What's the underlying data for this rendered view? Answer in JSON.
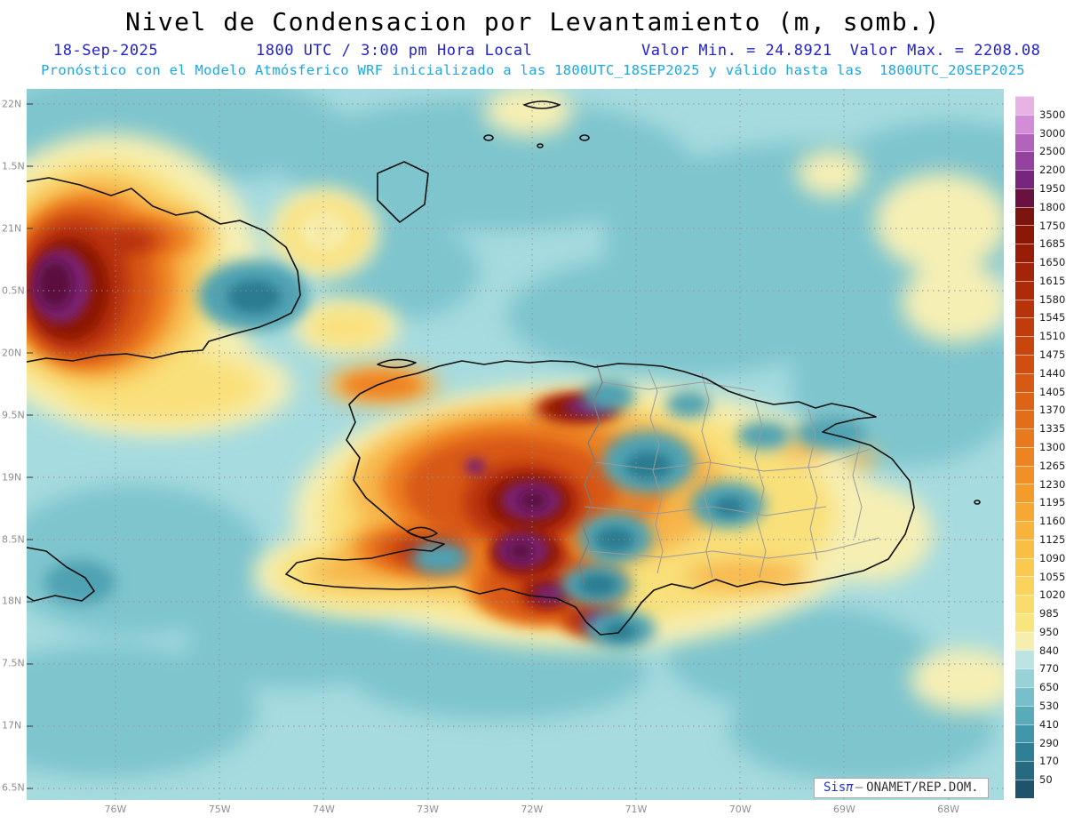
{
  "title": "Nivel de Condensacion por Levantamiento (m, somb.)",
  "header": {
    "date": "18-Sep-2025",
    "time": "1800 UTC / 3:00 pm Hora Local",
    "min_label": "Valor Min. = 24.8921",
    "max_label": "Valor Max. = 2208.08",
    "model_line": "Pronóstico con el Modelo Atmósferico WRF inicializado a las 1800UTC_18SEP2025 y válido hasta las  1800UTC_20SEP2025"
  },
  "map": {
    "lat_labels": [
      "22N",
      "1.5N",
      "21N",
      "0.5N",
      "20N",
      "9.5N",
      "19N",
      "8.5N",
      "18N",
      "7.5N",
      "17N",
      "6.5N"
    ],
    "lon_labels": [
      "76W",
      "75W",
      "74W",
      "73W",
      "72W",
      "71W",
      "70W",
      "69W",
      "68W"
    ]
  },
  "colorbar": {
    "ticks": [
      "3500",
      "3000",
      "2500",
      "2200",
      "1950",
      "1800",
      "1750",
      "1685",
      "1650",
      "1615",
      "1580",
      "1545",
      "1510",
      "1475",
      "1440",
      "1405",
      "1370",
      "1335",
      "1300",
      "1265",
      "1230",
      "1195",
      "1160",
      "1125",
      "1090",
      "1055",
      "1020",
      "985",
      "950",
      "840",
      "770",
      "650",
      "530",
      "410",
      "290",
      "170",
      "50"
    ],
    "colors": [
      "#e7b3e4",
      "#d28cd8",
      "#b463bd",
      "#95419f",
      "#76267c",
      "#691242",
      "#7c1510",
      "#8b1706",
      "#981d07",
      "#a32408",
      "#ad2b09",
      "#b7330a",
      "#c03c0c",
      "#c8450e",
      "#d04f10",
      "#d75913",
      "#dd6316",
      "#e36e19",
      "#e8791d",
      "#ec8421",
      "#f09026",
      "#f39c2c",
      "#f5a833",
      "#f7b33b",
      "#f9bf45",
      "#fac950",
      "#fad35d",
      "#f9dc6b",
      "#f8e57d",
      "#f6eeae",
      "#bde4e2",
      "#97d2d8",
      "#77bfca",
      "#59abba",
      "#4296a9",
      "#2f8096",
      "#256a81",
      "#1e546b"
    ]
  },
  "credit": {
    "brand": "Sis",
    "symbol": "π",
    "separator": "—",
    "org": "ONAMET/REP.DOM."
  },
  "palette": {
    "sea_background": "#a6dbdf",
    "header_blue": "#2222cc",
    "header_cyan": "#1ba8e0",
    "axis_label_gray": "#8e8e8e"
  }
}
